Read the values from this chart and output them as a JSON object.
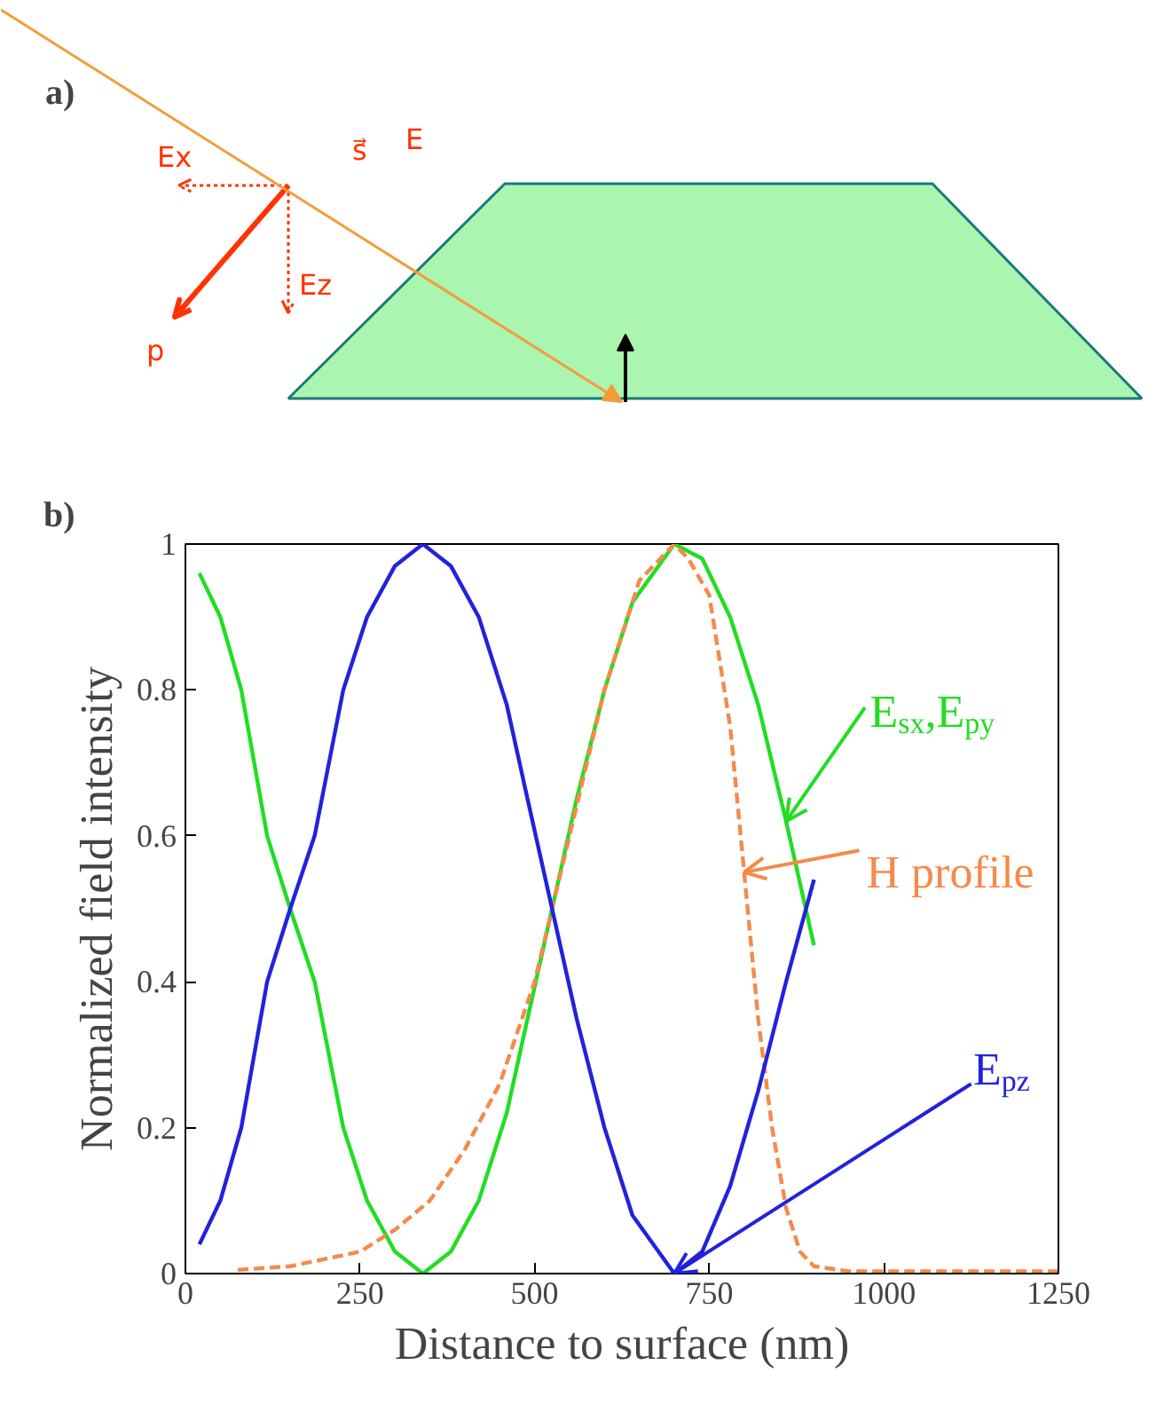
{
  "chart_data": [
    {
      "type": "other",
      "title": "a)",
      "annotations": [
        "Ex",
        "Ez",
        "s⃗",
        "E",
        "p"
      ]
    },
    {
      "type": "line",
      "title": "b)",
      "xlabel": "Distance to surface (nm)",
      "ylabel": "Normalized field intensity",
      "xlim": [
        0,
        1250
      ],
      "ylim": [
        0,
        1
      ],
      "xticks": [
        0,
        250,
        500,
        750,
        1000,
        1250
      ],
      "yticks": [
        0,
        0.2,
        0.4,
        0.6,
        0.8,
        1
      ],
      "grid": false,
      "legend": "right",
      "series": [
        {
          "name": "E$_{sx}$,E$_{py}$",
          "color": "#22dd22",
          "line_style": "solid",
          "x": [
            20,
            50,
            80,
            117,
            150,
            185,
            226,
            260,
            300,
            340,
            380,
            420,
            460,
            490,
            525,
            560,
            600,
            640,
            700,
            740,
            780,
            820,
            860,
            900
          ],
          "values": [
            0.96,
            0.9,
            0.8,
            0.6,
            0.5,
            0.4,
            0.2,
            0.1,
            0.03,
            0,
            0.03,
            0.1,
            0.22,
            0.35,
            0.5,
            0.65,
            0.8,
            0.92,
            1.0,
            0.98,
            0.9,
            0.78,
            0.62,
            0.45
          ]
        },
        {
          "name": "H profile",
          "color": "#f58a4a",
          "line_style": "dashed",
          "x": [
            75,
            150,
            250,
            300,
            350,
            400,
            450,
            500,
            550,
            600,
            650,
            700,
            720,
            750,
            780,
            800,
            820,
            840,
            860,
            880,
            900,
            950,
            1250
          ],
          "values": [
            0.005,
            0.01,
            0.03,
            0.06,
            0.1,
            0.17,
            0.26,
            0.4,
            0.6,
            0.8,
            0.95,
            1.0,
            0.98,
            0.93,
            0.75,
            0.55,
            0.35,
            0.2,
            0.09,
            0.03,
            0.01,
            0.003,
            0.003
          ]
        },
        {
          "name": "E$_{pz}$",
          "color": "#2222dd",
          "line_style": "solid",
          "x": [
            20,
            50,
            80,
            117,
            150,
            185,
            226,
            260,
            300,
            340,
            380,
            420,
            460,
            490,
            525,
            560,
            600,
            640,
            700,
            740,
            780,
            820,
            860,
            900
          ],
          "values": [
            0.04,
            0.1,
            0.2,
            0.4,
            0.5,
            0.6,
            0.8,
            0.9,
            0.97,
            1.0,
            0.97,
            0.9,
            0.78,
            0.65,
            0.5,
            0.35,
            0.2,
            0.08,
            0.0,
            0.03,
            0.12,
            0.25,
            0.4,
            0.54
          ]
        }
      ]
    }
  ]
}
